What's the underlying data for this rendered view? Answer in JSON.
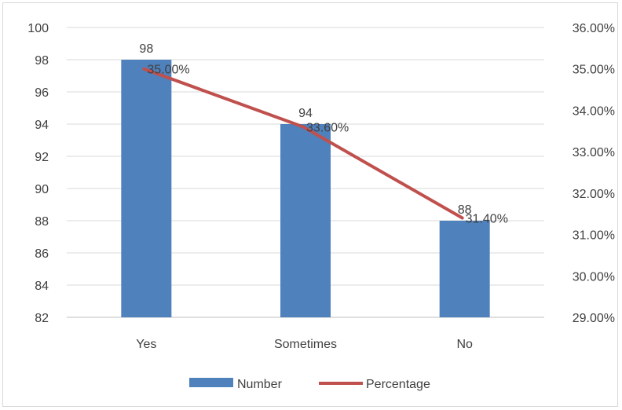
{
  "chart_data": {
    "type": "bar",
    "title": "",
    "xlabel": "",
    "ylabel": "",
    "categories": [
      "Yes",
      "Sometimes",
      "No"
    ],
    "series": [
      {
        "name": "Number",
        "kind": "bar",
        "axis": "left",
        "values": [
          98,
          94,
          88
        ],
        "data_labels": [
          "98",
          "94",
          "88"
        ],
        "color": "#4f81bd"
      },
      {
        "name": "Percentage",
        "kind": "line",
        "axis": "right",
        "values": [
          35.0,
          33.6,
          31.4
        ],
        "data_labels": [
          "35.00%",
          "33.60%",
          "31.40%"
        ],
        "color": "#c0504d"
      }
    ],
    "y_left": {
      "range": [
        82,
        100
      ],
      "ticks": [
        82,
        84,
        86,
        88,
        90,
        92,
        94,
        96,
        98,
        100
      ],
      "tick_labels": [
        "82",
        "84",
        "86",
        "88",
        "90",
        "92",
        "94",
        "96",
        "98",
        "100"
      ]
    },
    "y_right": {
      "range": [
        29,
        36
      ],
      "ticks": [
        29,
        30,
        31,
        32,
        33,
        34,
        35,
        36
      ],
      "tick_labels": [
        "29.00%",
        "30.00%",
        "31.00%",
        "32.00%",
        "33.00%",
        "34.00%",
        "35.00%",
        "36.00%"
      ]
    },
    "grid": true,
    "legend_position": "bottom"
  }
}
